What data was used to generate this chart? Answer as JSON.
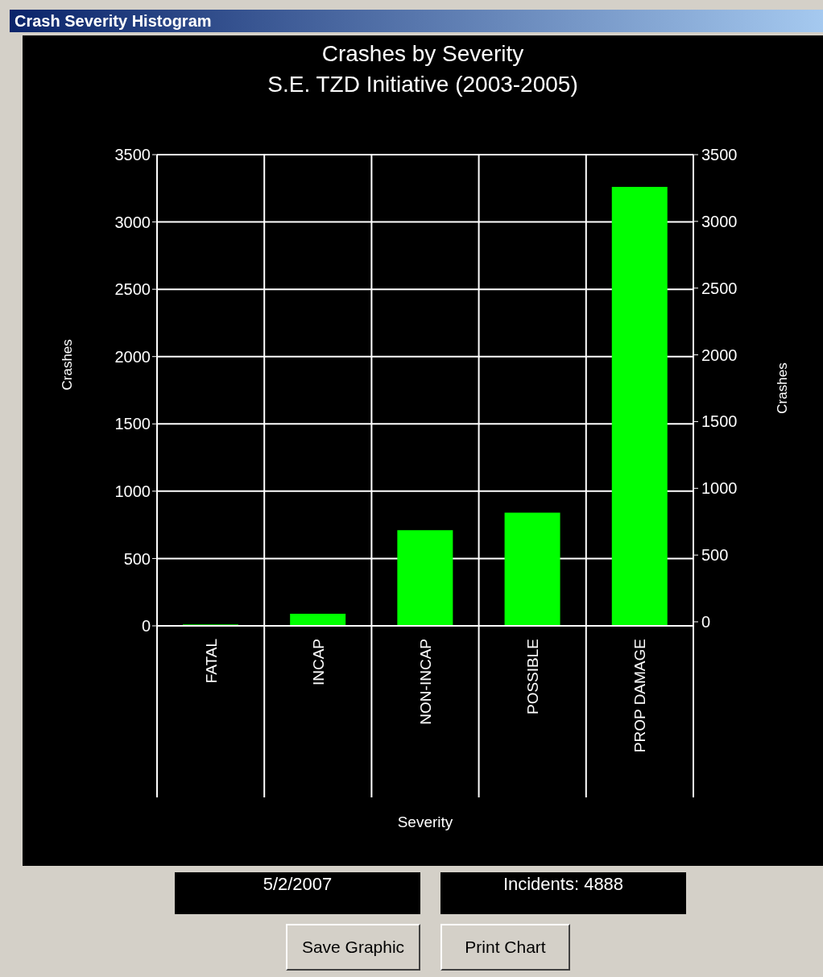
{
  "chart_data": {
    "type": "bar",
    "title": "Crashes by Severity",
    "subtitle": "S.E. TZD Initiative (2003-2005)",
    "xlabel": "Severity",
    "ylabel": "Crashes",
    "y2label": "Crashes",
    "categories": [
      "FATAL",
      "INCAP",
      "NON-INCAP",
      "POSSIBLE",
      "PROP DAMAGE"
    ],
    "values": [
      10,
      90,
      710,
      840,
      3260
    ],
    "color": "#00ff00",
    "ylim": [
      0,
      3500
    ],
    "yticks": [
      0,
      500,
      1000,
      1500,
      2000,
      2500,
      3000,
      3500
    ],
    "y2lim": [
      0,
      3500
    ],
    "y2ticks": [
      0,
      500,
      1000,
      1500,
      2000,
      2500,
      3000,
      3500
    ],
    "grid": true,
    "annotations": [
      "Crash Severity Histogram",
      "5/2/2007",
      "Incidents: 4888",
      "Save Graphic",
      "Print Chart"
    ]
  }
}
